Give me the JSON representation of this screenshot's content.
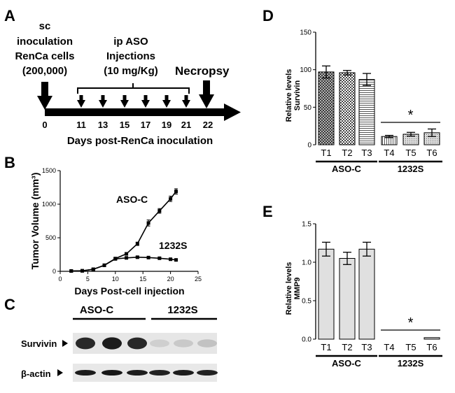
{
  "panelA": {
    "letter": "A",
    "inoculation_lines": [
      "sc",
      "inoculation",
      "RenCa cells",
      "(200,000)"
    ],
    "injection_lines": [
      "ip ASO",
      "Injections",
      "(10 mg/Kg)"
    ],
    "necropsy": "Necropsy",
    "days": [
      "0",
      "11",
      "13",
      "15",
      "17",
      "19",
      "21",
      "22"
    ],
    "xlabel": "Days post-RenCa inoculation"
  },
  "panelC": {
    "letter": "C",
    "group1": "ASO-C",
    "group2": "1232S",
    "row1": "Survivin",
    "row2": "β-actin",
    "row1_band_intensity": [
      0.85,
      0.9,
      0.85,
      0.12,
      0.15,
      0.18
    ],
    "row2_band_intensity": [
      0.9,
      0.92,
      0.9,
      0.88,
      0.9,
      0.88
    ]
  },
  "chart_data": [
    {
      "panel": "B",
      "type": "line",
      "xlabel": "Days Post-cell injection",
      "ylabel": "Tumor Volume (mm³)",
      "xlim": [
        0,
        25
      ],
      "ylim": [
        0,
        1500
      ],
      "xticks": [
        "0",
        "5",
        "10",
        "15",
        "20",
        "25"
      ],
      "yticks": [
        "0",
        "500",
        "1000",
        "1500"
      ],
      "series": [
        {
          "name": "ASO-C",
          "x": [
            2,
            4,
            6,
            8,
            10,
            12,
            14,
            16,
            18,
            20,
            21
          ],
          "y": [
            5,
            8,
            30,
            90,
            190,
            260,
            410,
            720,
            900,
            1080,
            1190
          ],
          "err": [
            0,
            0,
            5,
            10,
            15,
            20,
            25,
            45,
            35,
            40,
            40
          ]
        },
        {
          "name": "1232S",
          "x": [
            2,
            4,
            6,
            8,
            10,
            12,
            14,
            16,
            18,
            20,
            21
          ],
          "y": [
            5,
            8,
            30,
            90,
            185,
            200,
            210,
            205,
            195,
            180,
            170
          ],
          "err": [
            0,
            0,
            5,
            10,
            10,
            10,
            12,
            10,
            10,
            10,
            10
          ]
        }
      ]
    },
    {
      "panel": "D",
      "type": "bar",
      "ylabel_lines": [
        "Relative levels",
        "Survivin"
      ],
      "ylim": [
        0,
        150
      ],
      "yticks": [
        "0",
        "50",
        "100",
        "150"
      ],
      "categories": [
        "T1",
        "T2",
        "T3",
        "T4",
        "T5",
        "T6"
      ],
      "values": [
        97,
        96,
        87,
        11,
        14,
        16
      ],
      "errors": [
        8,
        3,
        8,
        1.5,
        2.5,
        5
      ],
      "patterns": [
        "crosshatch",
        "checker",
        "hstripes",
        "vstripes",
        "dots",
        "dots"
      ],
      "groups": [
        {
          "label": "ASO-C",
          "from": 0,
          "to": 2
        },
        {
          "label": "1232S",
          "from": 3,
          "to": 5
        }
      ],
      "significance": "*"
    },
    {
      "panel": "E",
      "type": "bar",
      "ylabel_lines": [
        "Relative levels",
        "MMP9"
      ],
      "ylim": [
        0,
        1.5
      ],
      "yticks": [
        "0.0",
        "0.5",
        "1.0",
        "1.5"
      ],
      "categories": [
        "T1",
        "T2",
        "T3",
        "T4",
        "T5",
        "T6"
      ],
      "values": [
        1.17,
        1.05,
        1.17,
        0.0,
        0.0,
        0.02
      ],
      "errors": [
        0.09,
        0.08,
        0.09,
        0.0,
        0.0,
        0.0
      ],
      "groups": [
        {
          "label": "ASO-C",
          "from": 0,
          "to": 2
        },
        {
          "label": "1232S",
          "from": 3,
          "to": 5
        }
      ],
      "significance": "*",
      "bar_color": "#e0e0e0"
    }
  ]
}
